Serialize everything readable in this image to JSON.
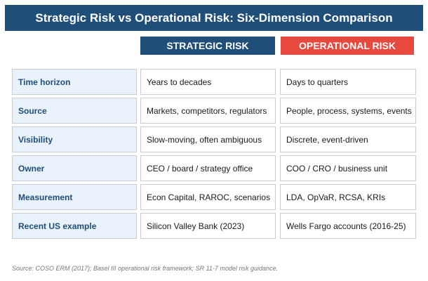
{
  "title": "Strategic Risk vs Operational Risk: Six-Dimension Comparison",
  "columns": {
    "strategic": "STRATEGIC RISK",
    "operational": "OPERATIONAL RISK"
  },
  "rows": [
    {
      "label": "Time horizon",
      "strategic": "Years to decades",
      "operational": "Days to quarters"
    },
    {
      "label": "Source",
      "strategic": "Markets, competitors, regulators",
      "operational": "People, process, systems, events"
    },
    {
      "label": "Visibility",
      "strategic": "Slow-moving, often ambiguous",
      "operational": "Discrete, event-driven"
    },
    {
      "label": "Owner",
      "strategic": "CEO / board / strategy office",
      "operational": "COO / CRO / business unit"
    },
    {
      "label": "Measurement",
      "strategic": "Econ Capital, RAROC, scenarios",
      "operational": "LDA, OpVaR, RCSA, KRIs"
    },
    {
      "label": "Recent US example",
      "strategic": "Silicon Valley Bank (2023)",
      "operational": "Wells Fargo accounts (2016-25)"
    }
  ],
  "source_note": "Source: COSO ERM (2017); Basel III operational risk framework; SR 11-7 model risk guidance.",
  "colors": {
    "navy": "#1f4e79",
    "red": "#e8493f",
    "label_bg": "#e9f1fa"
  }
}
